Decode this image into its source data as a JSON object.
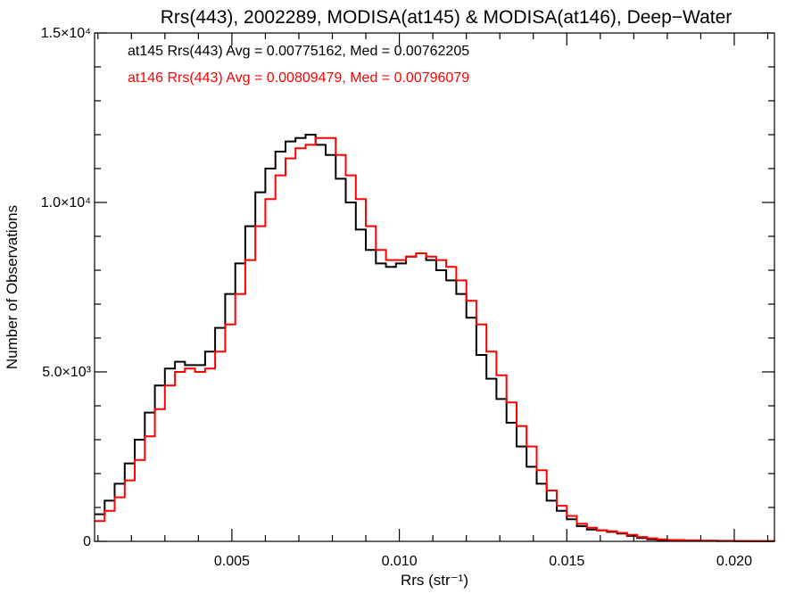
{
  "chart_data": {
    "type": "line",
    "title": "Rrs(443), 2002289, MODISA(at145) & MODISA(at146), Deep−Water",
    "xlabel": "Rrs (str⁻¹)",
    "ylabel": "Number of Observations",
    "xlim": [
      0.0009,
      0.0212
    ],
    "ylim": [
      0,
      15000
    ],
    "x_ticks": [
      {
        "value": 0.005,
        "label": "0.005"
      },
      {
        "value": 0.01,
        "label": "0.010"
      },
      {
        "value": 0.015,
        "label": "0.015"
      },
      {
        "value": 0.02,
        "label": "0.020"
      }
    ],
    "y_ticks": [
      {
        "value": 0,
        "label": "0"
      },
      {
        "value": 5000,
        "label": "5.0×10³"
      },
      {
        "value": 10000,
        "label": "1.0×10⁴"
      },
      {
        "value": 15000,
        "label": "1.5×10⁴"
      }
    ],
    "annotations": [
      {
        "text": "at145 Rrs(443) Avg = 0.00775162, Med = 0.00762205",
        "color": "#000000"
      },
      {
        "text": "at146 Rrs(443) Avg = 0.00809479, Med = 0.00796079",
        "color": "#ff0000"
      }
    ],
    "series": [
      {
        "color": "#000000",
        "x": [
          0.0009,
          0.0012,
          0.0015,
          0.0018,
          0.0021,
          0.0024,
          0.0027,
          0.003,
          0.0033,
          0.0036,
          0.0039,
          0.0042,
          0.0045,
          0.0048,
          0.0051,
          0.0054,
          0.0057,
          0.006,
          0.0063,
          0.0066,
          0.0069,
          0.0072,
          0.0075,
          0.0078,
          0.0081,
          0.0084,
          0.0087,
          0.009,
          0.0093,
          0.0096,
          0.0099,
          0.0102,
          0.0105,
          0.0108,
          0.0111,
          0.0114,
          0.0117,
          0.012,
          0.0123,
          0.0126,
          0.0129,
          0.0132,
          0.0135,
          0.0138,
          0.0141,
          0.0144,
          0.0147,
          0.015,
          0.0153,
          0.0156,
          0.0159,
          0.0162,
          0.0165,
          0.0168,
          0.0171,
          0.0174,
          0.0177,
          0.018,
          0.0185,
          0.019,
          0.0195,
          0.02,
          0.0205,
          0.0212
        ],
        "y": [
          800,
          1200,
          1700,
          2300,
          3000,
          3800,
          4600,
          5100,
          5300,
          5200,
          5200,
          5600,
          6300,
          7300,
          8200,
          9300,
          10300,
          11000,
          11500,
          11800,
          11900,
          12000,
          11700,
          11400,
          10700,
          10000,
          9200,
          8600,
          8200,
          8100,
          8200,
          8400,
          8500,
          8300,
          8000,
          7700,
          7300,
          6600,
          5500,
          4800,
          4200,
          3500,
          2800,
          2200,
          1700,
          1200,
          900,
          650,
          450,
          350,
          320,
          280,
          230,
          160,
          100,
          60,
          40,
          30,
          20,
          15,
          10,
          5,
          5,
          0
        ]
      },
      {
        "color": "#ff0000",
        "x": [
          0.0009,
          0.0012,
          0.0015,
          0.0018,
          0.0021,
          0.0024,
          0.0027,
          0.003,
          0.0033,
          0.0036,
          0.0039,
          0.0042,
          0.0045,
          0.0048,
          0.0051,
          0.0054,
          0.0057,
          0.006,
          0.0063,
          0.0066,
          0.0069,
          0.0072,
          0.0075,
          0.0078,
          0.0081,
          0.0084,
          0.0087,
          0.009,
          0.0093,
          0.0096,
          0.0099,
          0.0102,
          0.0105,
          0.0108,
          0.0111,
          0.0114,
          0.0117,
          0.012,
          0.0123,
          0.0126,
          0.0129,
          0.0132,
          0.0135,
          0.0138,
          0.0141,
          0.0144,
          0.0147,
          0.015,
          0.0153,
          0.0156,
          0.0159,
          0.0162,
          0.0165,
          0.0168,
          0.0171,
          0.0174,
          0.0177,
          0.018,
          0.0185,
          0.019,
          0.0195,
          0.02,
          0.0205,
          0.0212
        ],
        "y": [
          600,
          900,
          1300,
          1800,
          2400,
          3100,
          3900,
          4600,
          5000,
          5100,
          5000,
          5100,
          5600,
          6400,
          7300,
          8300,
          9300,
          10100,
          10800,
          11300,
          11600,
          11700,
          11900,
          11900,
          11400,
          10800,
          10100,
          9300,
          8600,
          8300,
          8300,
          8400,
          8500,
          8400,
          8300,
          8100,
          7700,
          7100,
          6400,
          5600,
          4900,
          4100,
          3400,
          2800,
          2100,
          1500,
          1050,
          750,
          520,
          400,
          330,
          300,
          250,
          190,
          130,
          90,
          60,
          40,
          30,
          20,
          15,
          10,
          5,
          0
        ]
      }
    ]
  }
}
